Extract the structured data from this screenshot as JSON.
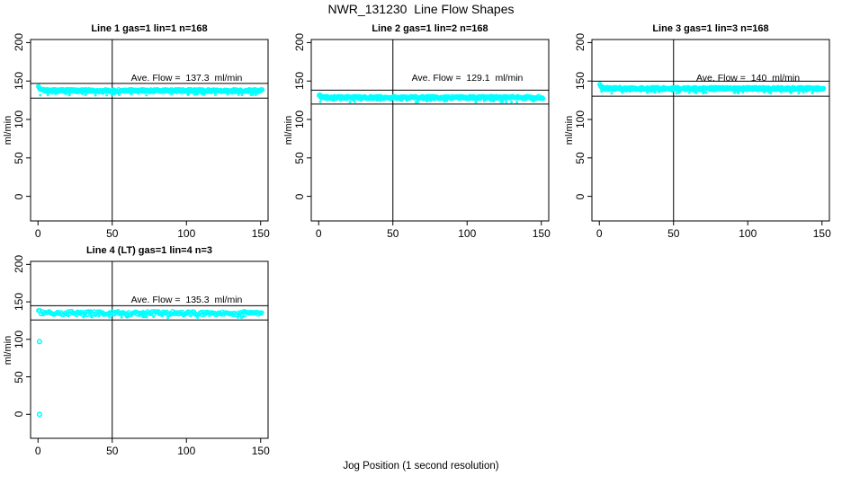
{
  "chart_data": {
    "type": "scatter",
    "title": "NWR_131230  Line Flow Shapes",
    "xlabel": "Jog Position (1 second resolution)",
    "ylabel": "ml/min",
    "marker": "open-circle",
    "marker_color": "#00ffff",
    "axis_color": "#000000",
    "background_color": "#ffffff",
    "xlim": [
      -5,
      155
    ],
    "ylim": [
      -32,
      204
    ],
    "xticks": [
      0,
      50,
      100,
      150
    ],
    "yticks": [
      0,
      50,
      100,
      150,
      200
    ],
    "grid": false,
    "legend": false,
    "panels": [
      {
        "title": "Line 1 gas=1 lin=1 n=168",
        "line": 1,
        "gas": 1,
        "lin": 1,
        "n": 168,
        "ave_flow": 137.3,
        "ave_flow_label": "Ave. Flow =  137.3  ml/min",
        "upper_ref": 146.9,
        "lower_ref": 127.7,
        "vline_x": 50,
        "series": {
          "x_start": 0.3,
          "x_end": 151.3,
          "start_flow": 147,
          "steady_flow": 137.5
        },
        "outliers": []
      },
      {
        "title": "Line 2 gas=1 lin=2 n=168",
        "line": 2,
        "gas": 1,
        "lin": 2,
        "n": 168,
        "ave_flow": 129.1,
        "ave_flow_label": "Ave. Flow =  129.1  ml/min",
        "upper_ref": 138.1,
        "lower_ref": 120.1,
        "vline_x": 50,
        "series": {
          "x_start": 0.3,
          "x_end": 151.3,
          "start_flow": 133.5,
          "steady_flow": 128.5
        },
        "outliers": []
      },
      {
        "title": "Line 3 gas=1 lin=3 n=168",
        "line": 3,
        "gas": 1,
        "lin": 3,
        "n": 168,
        "ave_flow": 140,
        "ave_flow_label": "Ave. Flow =  140  ml/min",
        "upper_ref": 149.8,
        "lower_ref": 130.2,
        "vline_x": 50,
        "series": {
          "x_start": 0.3,
          "x_end": 151.3,
          "start_flow": 148.5,
          "steady_flow": 140.2
        },
        "outliers": []
      },
      {
        "title": "Line 4 (LT) gas=1 lin=4 n=3",
        "line": 4,
        "line_note": "LT",
        "gas": 1,
        "lin": 4,
        "n": 3,
        "ave_flow": 135.3,
        "ave_flow_label": "Ave. Flow =  135.3  ml/min",
        "upper_ref": 144.8,
        "lower_ref": 125.8,
        "vline_x": 50,
        "series": {
          "x_start": 0.3,
          "x_end": 151.3,
          "start_flow": 139,
          "steady_flow": 135
        },
        "outliers": [
          {
            "x": 1,
            "y": 97
          },
          {
            "x": 1,
            "y": 0
          }
        ]
      }
    ]
  }
}
